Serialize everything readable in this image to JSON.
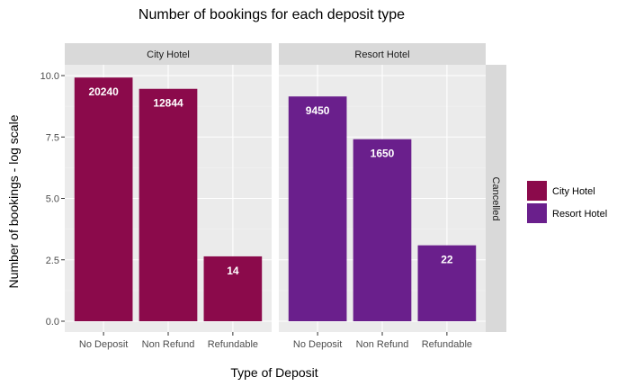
{
  "chart_data": {
    "type": "bar",
    "title": "Number of bookings for each deposit type",
    "xlabel": "Type of Deposit",
    "ylabel": "Number of bookings - log scale",
    "yscale": "log",
    "ylim": [
      0,
      10.0
    ],
    "yticks": [
      "0.0",
      "2.5",
      "5.0",
      "7.5",
      "10.0"
    ],
    "row_strip": "Cancelled",
    "grid": true,
    "legend_position": "right",
    "categories": [
      "No Deposit",
      "Non Refund",
      "Refundable"
    ],
    "panels": [
      {
        "name": "City Hotel",
        "color": "#8B0A4B",
        "counts": [
          20240,
          12844,
          14
        ],
        "count_labels": [
          "20240",
          "12844",
          "14"
        ],
        "log_values": [
          9.92,
          9.46,
          2.64
        ]
      },
      {
        "name": "Resort Hotel",
        "color": "#6A1F8C",
        "counts": [
          9450,
          1650,
          22
        ],
        "count_labels": [
          "9450",
          "1650",
          "22"
        ],
        "log_values": [
          9.15,
          7.41,
          3.09
        ]
      }
    ],
    "legend": [
      {
        "name": "City Hotel",
        "color": "#8B0A4B"
      },
      {
        "name": "Resort Hotel",
        "color": "#6A1F8C"
      }
    ]
  }
}
